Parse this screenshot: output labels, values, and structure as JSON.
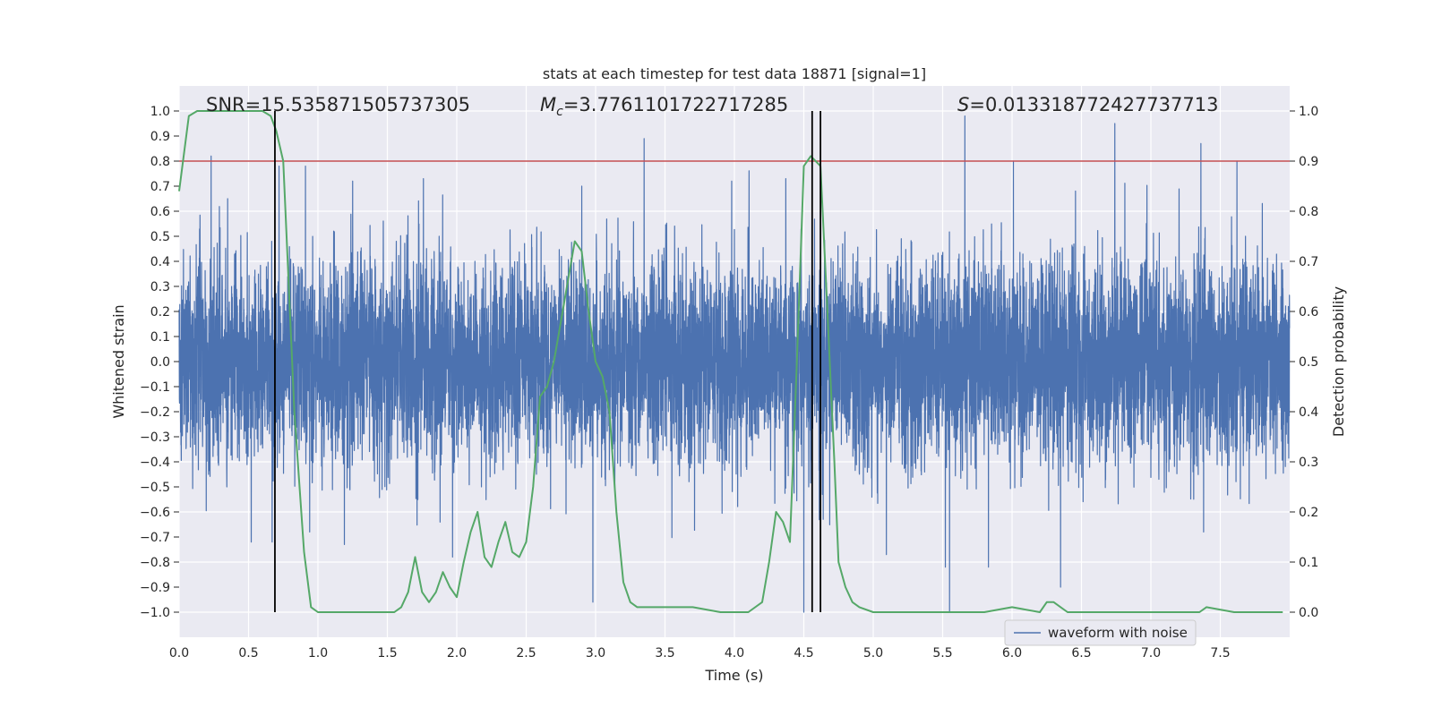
{
  "chart_data": {
    "type": "line",
    "title": "stats at each timestep for test data 18871 [signal=1]",
    "xlabel": "Time (s)",
    "ylabel_left": "Whitened strain",
    "ylabel_right": "Detection probability",
    "xlim": [
      0.0,
      8.0
    ],
    "ylim_left": [
      -1.1,
      1.1
    ],
    "ylim_right": [
      -0.05,
      1.05
    ],
    "x_ticks": [
      "0.0",
      "0.5",
      "1.0",
      "1.5",
      "2.0",
      "2.5",
      "3.0",
      "3.5",
      "4.0",
      "4.5",
      "5.0",
      "5.5",
      "6.0",
      "6.5",
      "7.0",
      "7.5"
    ],
    "y_left_ticks": [
      "1.0",
      "0.9",
      "0.8",
      "0.7",
      "0.6",
      "0.5",
      "0.4",
      "0.3",
      "0.2",
      "0.1",
      "0.0",
      "-0.1",
      "-0.2",
      "-0.3",
      "-0.4",
      "-0.5",
      "-0.6",
      "-0.7",
      "-0.8",
      "-0.9",
      "-1.0"
    ],
    "y_right_ticks": [
      "1.0",
      "0.9",
      "0.8",
      "0.7",
      "0.6",
      "0.5",
      "0.4",
      "0.3",
      "0.2",
      "0.1",
      "0.0"
    ],
    "grid": true,
    "legend": {
      "location": "lower-right",
      "entries": [
        "waveform with noise"
      ]
    },
    "annotations": {
      "snr": "SNR=15.535871505737305",
      "mc_symbol": "M",
      "mc_subscript": "c",
      "mc_value": "=3.7761101722717285",
      "s_symbol": "S",
      "s_value": "=0.013318772427737713"
    },
    "threshold": {
      "axis": "right",
      "value": 0.9,
      "color": "#c44e52"
    },
    "vertical_markers": {
      "x": [
        0.69,
        4.56,
        4.62
      ],
      "y_range_left": [
        -1.0,
        1.0
      ],
      "color": "#000000"
    },
    "series": [
      {
        "name": "waveform with noise",
        "axis": "left",
        "kind": "dense_noise",
        "color": "#4c72b0",
        "sample_rate_hz": 1024,
        "duration_s": 8.0,
        "noise_sigma": 0.2,
        "peaks": [
          {
            "x": 0.23,
            "y": 0.82
          },
          {
            "x": 0.35,
            "y": 0.65
          },
          {
            "x": 0.52,
            "y": 0.75
          },
          {
            "x": 0.72,
            "y": 0.78
          },
          {
            "x": 0.91,
            "y": 0.78
          },
          {
            "x": 1.25,
            "y": 0.72
          },
          {
            "x": 1.76,
            "y": 0.73
          },
          {
            "x": 2.9,
            "y": 0.7
          },
          {
            "x": 3.35,
            "y": 0.89
          },
          {
            "x": 3.98,
            "y": 0.72
          },
          {
            "x": 4.37,
            "y": 0.73
          },
          {
            "x": 5.66,
            "y": 0.98
          },
          {
            "x": 6.01,
            "y": 0.8
          },
          {
            "x": 6.74,
            "y": 0.95
          },
          {
            "x": 7.36,
            "y": 0.87
          },
          {
            "x": 7.62,
            "y": 0.8
          }
        ],
        "troughs": [
          {
            "x": 0.52,
            "y": -0.72
          },
          {
            "x": 0.67,
            "y": -0.72
          },
          {
            "x": 0.94,
            "y": -0.68
          },
          {
            "x": 1.19,
            "y": -0.73
          },
          {
            "x": 1.97,
            "y": -0.78
          },
          {
            "x": 2.98,
            "y": -0.96
          },
          {
            "x": 4.5,
            "y": -1.0
          },
          {
            "x": 5.55,
            "y": -1.0
          },
          {
            "x": 5.52,
            "y": -0.82
          },
          {
            "x": 5.83,
            "y": -0.82
          },
          {
            "x": 6.35,
            "y": -0.9
          },
          {
            "x": 7.38,
            "y": -0.68
          }
        ]
      },
      {
        "name": "detection probability",
        "axis": "right",
        "color": "#55a868",
        "x": [
          0.0,
          0.07,
          0.13,
          0.2,
          0.3,
          0.4,
          0.5,
          0.55,
          0.6,
          0.66,
          0.7,
          0.75,
          0.79,
          0.83,
          0.9,
          0.95,
          1.0,
          1.2,
          1.4,
          1.55,
          1.6,
          1.65,
          1.7,
          1.75,
          1.8,
          1.85,
          1.9,
          1.95,
          2.0,
          2.05,
          2.1,
          2.15,
          2.2,
          2.25,
          2.3,
          2.35,
          2.4,
          2.45,
          2.5,
          2.55,
          2.6,
          2.65,
          2.7,
          2.75,
          2.8,
          2.85,
          2.9,
          2.95,
          3.0,
          3.05,
          3.1,
          3.15,
          3.2,
          3.25,
          3.3,
          3.35,
          3.5,
          3.7,
          3.9,
          4.1,
          4.2,
          4.25,
          4.3,
          4.35,
          4.4,
          4.45,
          4.5,
          4.55,
          4.62,
          4.67,
          4.72,
          4.75,
          4.8,
          4.85,
          4.9,
          5.0,
          5.2,
          5.4,
          5.6,
          5.8,
          6.0,
          6.2,
          6.25,
          6.3,
          6.35,
          6.4,
          6.6,
          6.9,
          7.2,
          7.35,
          7.4,
          7.6,
          7.95
        ],
        "y": [
          0.84,
          0.99,
          1.0,
          1.0,
          1.0,
          1.0,
          1.0,
          1.0,
          1.0,
          0.99,
          0.96,
          0.9,
          0.65,
          0.4,
          0.12,
          0.01,
          0.0,
          0.0,
          0.0,
          0.0,
          0.01,
          0.04,
          0.11,
          0.04,
          0.02,
          0.04,
          0.08,
          0.05,
          0.03,
          0.1,
          0.16,
          0.2,
          0.11,
          0.09,
          0.14,
          0.18,
          0.12,
          0.11,
          0.14,
          0.25,
          0.43,
          0.45,
          0.5,
          0.58,
          0.66,
          0.74,
          0.72,
          0.6,
          0.5,
          0.47,
          0.4,
          0.2,
          0.06,
          0.02,
          0.01,
          0.01,
          0.01,
          0.01,
          0.0,
          0.0,
          0.02,
          0.1,
          0.2,
          0.18,
          0.14,
          0.5,
          0.89,
          0.91,
          0.89,
          0.6,
          0.3,
          0.1,
          0.05,
          0.02,
          0.01,
          0.0,
          0.0,
          0.0,
          0.0,
          0.0,
          0.01,
          0.0,
          0.02,
          0.02,
          0.01,
          0.0,
          0.0,
          0.0,
          0.0,
          0.0,
          0.01,
          0.0,
          0.0
        ]
      }
    ]
  }
}
